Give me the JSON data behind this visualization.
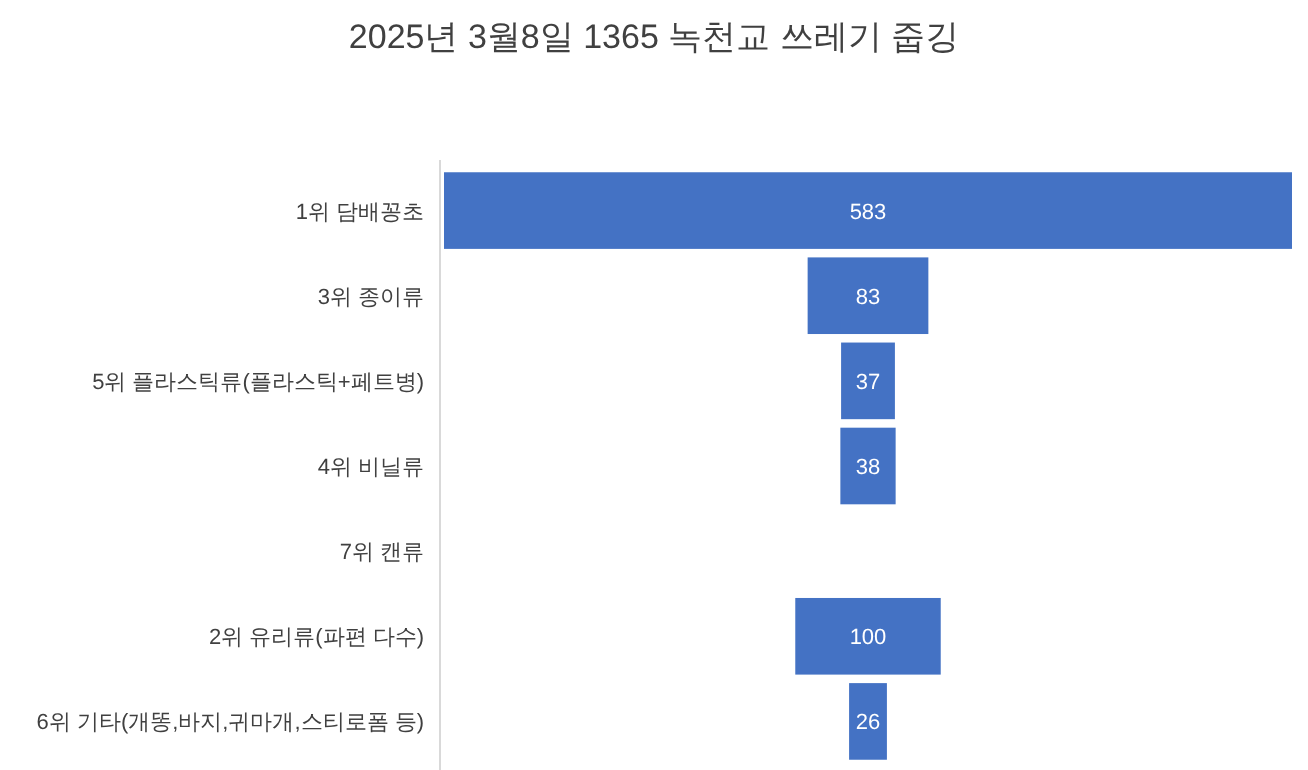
{
  "chart_data": {
    "type": "other",
    "title": "2025년 3월8일 1365 녹천교 쓰레기 줍깅",
    "categories": [
      "1위 담배꽁초",
      "3위 종이류",
      "5위 플라스틱류(플라스틱+페트병)",
      "4위 비닐류",
      "7위 캔류",
      "2위 유리류(파편 다수)",
      "6위 기타(개똥,바지,귀마개,스티로폼 등)"
    ],
    "values": [
      583,
      83,
      37,
      38,
      null,
      100,
      26
    ],
    "color": "#4472c4",
    "data_labels": true
  }
}
